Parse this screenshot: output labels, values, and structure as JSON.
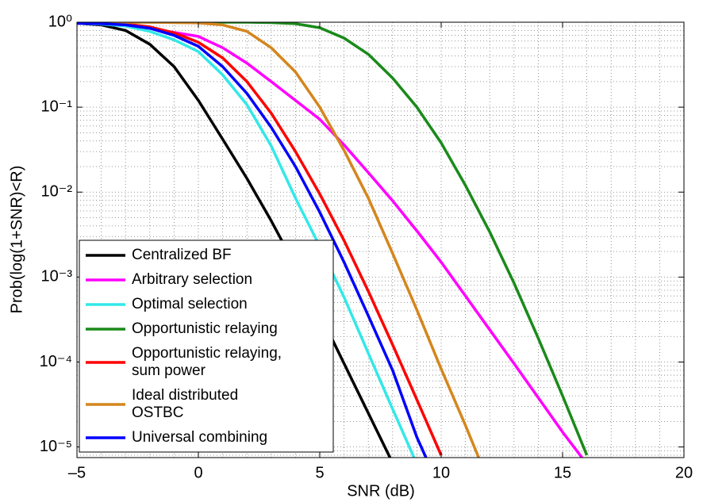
{
  "chart_data": {
    "type": "line",
    "x_label": "SNR (dB)",
    "y_label": "Prob(log(1+SNR)<R)",
    "log_y": true,
    "grid": true,
    "minor_grid": true,
    "legend": "lower left",
    "x": [
      -5,
      -4,
      -3,
      -2,
      -1,
      0,
      1,
      2,
      3,
      4,
      5,
      6,
      7,
      8,
      9,
      10,
      11,
      12,
      13,
      14,
      15,
      16,
      17,
      18,
      19,
      20
    ],
    "xlim": [
      -5,
      20
    ],
    "xticks": [
      {
        "value": -5,
        "label": "–5"
      },
      0,
      5,
      10,
      15,
      20
    ],
    "ylim": [
      7.5e-06,
      1
    ],
    "yticks": [
      {
        "value": 1e-05,
        "label": "10⁻⁵"
      },
      {
        "value": 0.0001,
        "label": "10⁻⁴"
      },
      {
        "value": 0.001,
        "label": "10⁻³"
      },
      {
        "value": 0.01,
        "label": "10⁻²"
      },
      {
        "value": 0.1,
        "label": "10⁻¹"
      },
      {
        "value": 1,
        "label": "10⁰"
      }
    ],
    "series": [
      {
        "name": "Centralized BF",
        "color": "#000000",
        "values": [
          0.97,
          0.93,
          0.8,
          0.55,
          0.3,
          0.12,
          0.042,
          0.0145,
          0.0046,
          0.00135,
          0.00037,
          9.6e-05,
          2.5e-05,
          6.5e-06,
          null,
          null,
          null,
          null,
          null,
          null,
          null,
          null,
          null,
          null,
          null,
          null
        ]
      },
      {
        "name": "Arbitrary selection",
        "color": "#ff00ff",
        "values": [
          0.97,
          0.95,
          0.92,
          0.85,
          0.76,
          0.68,
          0.5,
          0.33,
          0.2,
          0.12,
          0.072,
          0.036,
          0.017,
          0.0079,
          0.0035,
          0.0015,
          0.0006,
          0.00024,
          9.6e-05,
          3.8e-05,
          1.5e-05,
          6.3e-06,
          null,
          null,
          null,
          null
        ]
      },
      {
        "name": "Optimal selection",
        "color": "#33e8e8",
        "values": [
          0.97,
          0.95,
          0.9,
          0.78,
          0.62,
          0.45,
          0.24,
          0.107,
          0.035,
          0.0085,
          0.0023,
          0.00058,
          0.000127,
          2.8e-05,
          6.3e-06,
          null,
          null,
          null,
          null,
          null,
          null,
          null,
          null,
          null,
          null,
          null
        ]
      },
      {
        "name": "Opportunistic relaying",
        "color": "#1a8a1a",
        "values": [
          1,
          1,
          1,
          1,
          1,
          1,
          1,
          1,
          0.99,
          0.96,
          0.86,
          0.65,
          0.42,
          0.22,
          0.1,
          0.038,
          0.012,
          0.0034,
          0.00085,
          0.00019,
          4e-05,
          8e-06,
          null,
          null,
          null,
          null
        ]
      },
      {
        "name": "Opportunistic relaying,\nsum power",
        "color": "#ff0000",
        "values": [
          0.98,
          0.97,
          0.95,
          0.88,
          0.75,
          0.58,
          0.38,
          0.2,
          0.085,
          0.03,
          0.0095,
          0.0027,
          0.00068,
          0.00016,
          3.6e-05,
          8e-06,
          null,
          null,
          null,
          null,
          null,
          null,
          null,
          null,
          null,
          null
        ]
      },
      {
        "name": "Ideal distributed\nOSTBC",
        "color": "#d4861e",
        "values": [
          1,
          1,
          1,
          1,
          0.99,
          0.98,
          0.93,
          0.78,
          0.5,
          0.26,
          0.1,
          0.031,
          0.0085,
          0.0019,
          0.00041,
          8.3e-05,
          1.8e-05,
          3.6e-06,
          null,
          null,
          null,
          null,
          null,
          null,
          null,
          null
        ]
      },
      {
        "name": "Universal combining",
        "color": "#0000ff",
        "values": [
          0.97,
          0.96,
          0.93,
          0.85,
          0.7,
          0.52,
          0.3,
          0.145,
          0.058,
          0.02,
          0.0058,
          0.0015,
          0.00035,
          8e-05,
          1.3e-05,
          3e-06,
          null,
          null,
          null,
          null,
          null,
          null,
          null,
          null,
          null,
          null
        ]
      }
    ]
  }
}
